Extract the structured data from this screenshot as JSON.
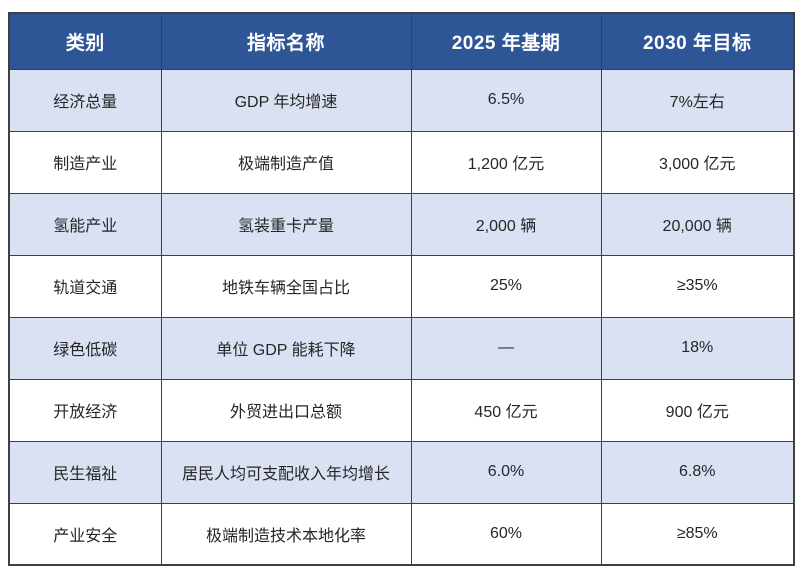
{
  "chart_data": {
    "type": "table",
    "title": "",
    "columns": [
      "类别",
      "指标名称",
      "2025 年基期",
      "2030 年目标"
    ],
    "rows": [
      [
        "经济总量",
        "GDP 年均增速",
        "6.5%",
        "7%左右"
      ],
      [
        "制造产业",
        "极端制造产值",
        "1,200 亿元",
        "3,000 亿元"
      ],
      [
        "氢能产业",
        "氢装重卡产量",
        "2,000 辆",
        "20,000 辆"
      ],
      [
        "轨道交通",
        "地铁车辆全国占比",
        "25%",
        "≥35%"
      ],
      [
        "绿色低碳",
        "单位 GDP 能耗下降",
        "—",
        "18%"
      ],
      [
        "开放经济",
        "外贸进出口总额",
        "450 亿元",
        "900 亿元"
      ],
      [
        "民生福祉",
        "居民人均可支配收入年均增长",
        "6.0%",
        "6.8%"
      ],
      [
        "产业安全",
        "极端制造技术本地化率",
        "60%",
        "≥85%"
      ]
    ]
  },
  "table": {
    "header": {
      "category": "类别",
      "indicator": "指标名称",
      "base_2025": "2025 年基期",
      "target_2030": "2030 年目标"
    },
    "rows": [
      {
        "category": "经济总量",
        "indicator": "GDP 年均增速",
        "base": "6.5%",
        "target": "7%左右"
      },
      {
        "category": "制造产业",
        "indicator": "极端制造产值",
        "base": "1,200 亿元",
        "target": "3,000 亿元"
      },
      {
        "category": "氢能产业",
        "indicator": "氢装重卡产量",
        "base": "2,000 辆",
        "target": "20,000 辆"
      },
      {
        "category": "轨道交通",
        "indicator": "地铁车辆全国占比",
        "base": "25%",
        "target": "≥35%"
      },
      {
        "category": "绿色低碳",
        "indicator": "单位 GDP 能耗下降",
        "base": "—",
        "target": "18%"
      },
      {
        "category": "开放经济",
        "indicator": "外贸进出口总额",
        "base": "450 亿元",
        "target": "900 亿元"
      },
      {
        "category": "民生福祉",
        "indicator": "居民人均可支配收入年均增长",
        "base": "6.0%",
        "target": "6.8%"
      },
      {
        "category": "产业安全",
        "indicator": "极端制造技术本地化率",
        "base": "60%",
        "target": "≥85%"
      }
    ],
    "colors": {
      "header_bg": "#2E5596",
      "header_text": "#FFFFFF",
      "row_alt_bg": "#D9E1F2",
      "row_bg": "#FFFFFF",
      "border": "#404040",
      "body_text": "#262626"
    }
  }
}
